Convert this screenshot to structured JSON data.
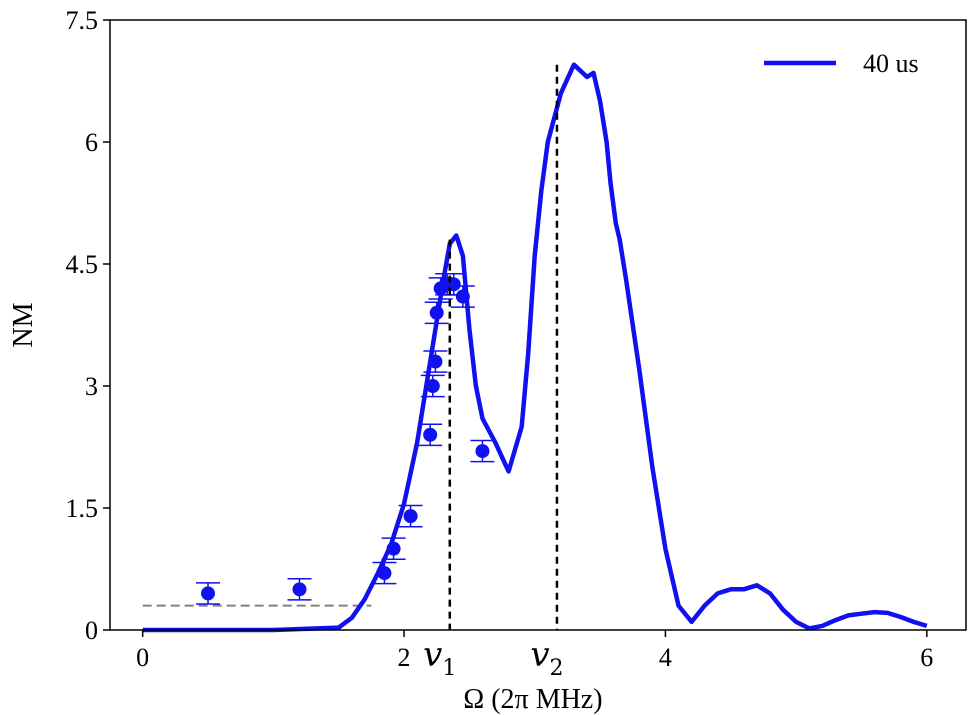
{
  "chart_data": {
    "type": "line",
    "xlabel": "Ω (2π MHz)",
    "ylabel": "NM",
    "xlim": [
      -0.25,
      6.3
    ],
    "ylim": [
      0,
      7.5
    ],
    "x_ticks": [
      0,
      2,
      4,
      6
    ],
    "x_tick_labels": [
      "0",
      "2",
      "4",
      "6"
    ],
    "y_ticks": [
      0,
      1.5,
      3,
      4.5,
      6,
      7.5
    ],
    "y_tick_labels": [
      "0",
      "1.5",
      "3",
      "4.5",
      "6",
      "7.5"
    ],
    "grid": false,
    "legend_position": "top-right",
    "colors": {
      "line": "#1010f0",
      "points": "#1010f0",
      "baseline": "#808080",
      "markers": "#000000"
    },
    "series": [
      {
        "name": "40 us",
        "kind": "line",
        "x": [
          0.0,
          1.0,
          1.5,
          1.6,
          1.7,
          1.8,
          1.9,
          2.0,
          2.1,
          2.2,
          2.3,
          2.35,
          2.4,
          2.45,
          2.5,
          2.55,
          2.6,
          2.7,
          2.8,
          2.9,
          2.95,
          3.0,
          3.05,
          3.1,
          3.2,
          3.3,
          3.4,
          3.45,
          3.5,
          3.55,
          3.58,
          3.62,
          3.65,
          3.7,
          3.8,
          3.9,
          4.0,
          4.1,
          4.2,
          4.3,
          4.4,
          4.5,
          4.6,
          4.7,
          4.8,
          4.9,
          5.0,
          5.1,
          5.2,
          5.3,
          5.4,
          5.5,
          5.6,
          5.7,
          5.8,
          5.9,
          6.0
        ],
        "y": [
          0.0,
          0.0,
          0.03,
          0.15,
          0.38,
          0.7,
          1.05,
          1.55,
          2.3,
          3.3,
          4.3,
          4.75,
          4.85,
          4.6,
          3.7,
          3.0,
          2.6,
          2.3,
          1.95,
          2.5,
          3.4,
          4.6,
          5.4,
          6.0,
          6.6,
          6.95,
          6.8,
          6.85,
          6.5,
          6.0,
          5.5,
          5.0,
          4.8,
          4.3,
          3.2,
          2.0,
          1.0,
          0.3,
          0.1,
          0.3,
          0.45,
          0.5,
          0.5,
          0.55,
          0.45,
          0.25,
          0.1,
          0.02,
          0.05,
          0.12,
          0.18,
          0.2,
          0.22,
          0.21,
          0.16,
          0.1,
          0.05
        ]
      },
      {
        "kind": "scatter",
        "x": [
          0.5,
          1.2,
          1.85,
          1.92,
          2.05,
          2.2,
          2.22,
          2.24,
          2.25,
          2.28,
          2.33,
          2.38,
          2.45,
          2.6
        ],
        "y": [
          0.45,
          0.5,
          0.7,
          1.0,
          1.4,
          2.4,
          3.0,
          3.3,
          3.9,
          4.2,
          4.25,
          4.25,
          4.1,
          2.2
        ],
        "err": [
          0.13,
          0.13,
          0.13,
          0.13,
          0.13,
          0.13,
          0.13,
          0.13,
          0.13,
          0.13,
          0.13,
          0.13,
          0.13,
          0.13
        ]
      }
    ],
    "baseline": {
      "y": 0.3,
      "x_start": 0.0,
      "x_end": 1.75
    },
    "annotations": [
      {
        "symbol": "v",
        "subscript": "1",
        "x": 2.35,
        "y_top": 4.8
      },
      {
        "symbol": "v",
        "subscript": "2",
        "x": 3.17,
        "y_top": 6.95
      }
    ]
  }
}
